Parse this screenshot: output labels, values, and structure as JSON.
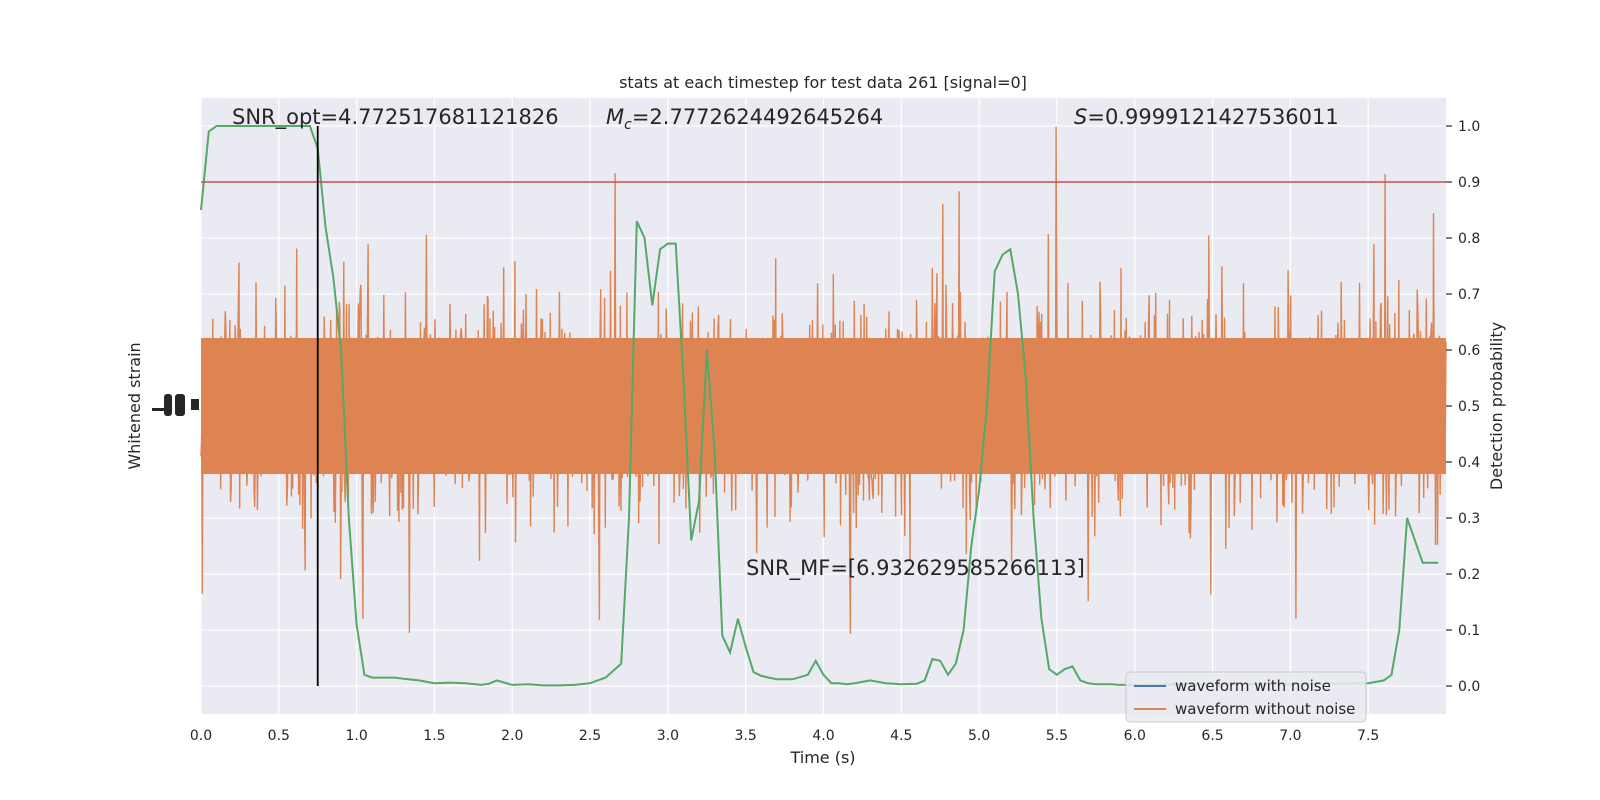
{
  "chart_data": {
    "type": "line",
    "title": "stats at each timestep for test data 261 [signal=0]",
    "xlabel": "Time (s)",
    "ylabel_left": "Whitened strain",
    "ylabel_right": "Detection probability",
    "xlim": [
      0.0,
      8.0
    ],
    "ylim_right": [
      -0.05,
      1.05
    ],
    "x_ticks": [
      "0.0",
      "0.5",
      "1.0",
      "1.5",
      "2.0",
      "2.5",
      "3.0",
      "3.5",
      "4.0",
      "4.5",
      "5.0",
      "5.5",
      "6.0",
      "6.5",
      "7.0",
      "7.5"
    ],
    "right_ticks": [
      "0.0",
      "0.1",
      "0.2",
      "0.3",
      "0.4",
      "0.5",
      "0.6",
      "0.7",
      "0.8",
      "0.9",
      "1.0"
    ],
    "grid": true,
    "annotations": {
      "snr_opt": "SNR_opt=4.772517681121826",
      "mc_symbol": "M",
      "mc_sub": "c",
      "mc_value": "=2.7772624492645264",
      "s_symbol": "S",
      "s_value": "=0.9999121427536011",
      "snr_mf": "SNR_MF=[6.932629585266113]"
    },
    "threshold": 0.9,
    "vline_x": 0.75,
    "legend": {
      "position": "lower-right",
      "entries": [
        {
          "label": "waveform with noise",
          "color": "#4c72b0"
        },
        {
          "label": "waveform without noise",
          "color": "#dd8452"
        }
      ]
    },
    "colors": {
      "background": "#eaeaf2",
      "grid": "#ffffff",
      "noise": "#dd8452",
      "probability": "#55a868",
      "threshold": "#c44e52",
      "vline": "#000000"
    },
    "probability_series": {
      "x": [
        0.0,
        0.05,
        0.1,
        0.15,
        0.2,
        0.25,
        0.3,
        0.35,
        0.4,
        0.45,
        0.5,
        0.55,
        0.6,
        0.65,
        0.7,
        0.75,
        0.8,
        0.85,
        0.9,
        0.95,
        1.0,
        1.05,
        1.1,
        1.15,
        1.2,
        1.25,
        1.3,
        1.4,
        1.5,
        1.6,
        1.7,
        1.8,
        1.85,
        1.9,
        2.0,
        2.1,
        2.2,
        2.3,
        2.4,
        2.5,
        2.6,
        2.7,
        2.75,
        2.8,
        2.85,
        2.9,
        2.95,
        3.0,
        3.05,
        3.1,
        3.15,
        3.2,
        3.25,
        3.3,
        3.35,
        3.4,
        3.45,
        3.5,
        3.55,
        3.6,
        3.65,
        3.7,
        3.8,
        3.9,
        3.95,
        4.0,
        4.05,
        4.1,
        4.15,
        4.2,
        4.3,
        4.4,
        4.5,
        4.6,
        4.65,
        4.7,
        4.75,
        4.8,
        4.85,
        4.9,
        4.95,
        5.0,
        5.05,
        5.1,
        5.15,
        5.2,
        5.25,
        5.3,
        5.35,
        5.4,
        5.45,
        5.5,
        5.55,
        5.6,
        5.65,
        5.7,
        5.75,
        5.8,
        5.85,
        5.9,
        6.0,
        6.5,
        7.0,
        7.5,
        7.6,
        7.65,
        7.7,
        7.75,
        7.8,
        7.85,
        7.9,
        7.95
      ],
      "y": [
        0.85,
        0.99,
        1.0,
        1.0,
        1.0,
        1.0,
        1.0,
        1.0,
        1.0,
        1.0,
        1.0,
        1.0,
        1.0,
        1.0,
        1.0,
        0.96,
        0.82,
        0.73,
        0.6,
        0.3,
        0.11,
        0.02,
        0.015,
        0.015,
        0.015,
        0.015,
        0.013,
        0.01,
        0.005,
        0.006,
        0.005,
        0.002,
        0.004,
        0.01,
        0.002,
        0.003,
        0.001,
        0.001,
        0.002,
        0.005,
        0.015,
        0.04,
        0.3,
        0.83,
        0.8,
        0.68,
        0.78,
        0.79,
        0.79,
        0.55,
        0.26,
        0.33,
        0.6,
        0.42,
        0.09,
        0.06,
        0.12,
        0.07,
        0.025,
        0.018,
        0.015,
        0.012,
        0.012,
        0.02,
        0.045,
        0.02,
        0.005,
        0.005,
        0.003,
        0.005,
        0.01,
        0.005,
        0.003,
        0.004,
        0.01,
        0.048,
        0.045,
        0.02,
        0.04,
        0.1,
        0.25,
        0.35,
        0.5,
        0.74,
        0.77,
        0.78,
        0.7,
        0.55,
        0.3,
        0.12,
        0.03,
        0.02,
        0.03,
        0.035,
        0.01,
        0.005,
        0.003,
        0.003,
        0.003,
        0.002,
        0.002,
        0.003,
        0.003,
        0.005,
        0.01,
        0.02,
        0.1,
        0.3,
        0.26,
        0.22,
        0.22,
        0.22
      ]
    }
  }
}
